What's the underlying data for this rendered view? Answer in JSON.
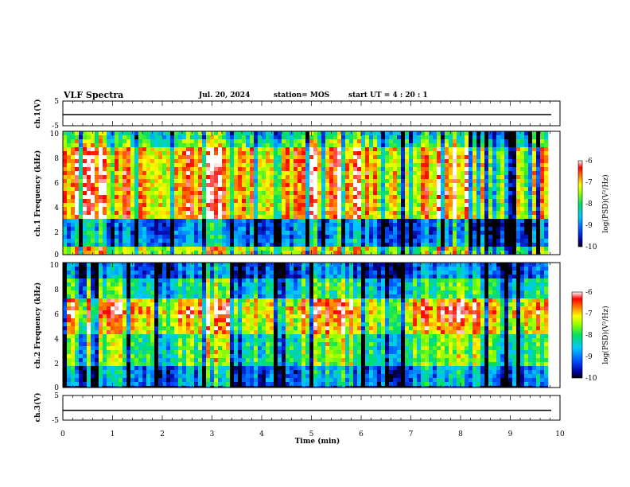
{
  "header": {
    "title": "VLF Spectra",
    "date": "Jul. 20, 2024",
    "station": "station= MOS",
    "start": "start UT =  4 : 20 : 1"
  },
  "chart_data": [
    {
      "type": "line",
      "panel": "ch1-waveform",
      "ylabel": "ch.1(V)",
      "ylim": [
        -5,
        5
      ],
      "yticks": [
        "5",
        "-5"
      ],
      "xlim": [
        0,
        10
      ],
      "series": [
        {
          "values": [
            -0.5
          ]
        }
      ]
    },
    {
      "type": "heatmap",
      "panel": "ch1-spectrogram",
      "ylabel": "ch.1 Frequency (kHz)",
      "xlim": [
        0,
        10
      ],
      "ylim": [
        0,
        10
      ],
      "yticks": [
        "0",
        "2",
        "4",
        "6",
        "8",
        "10"
      ],
      "colorbar": {
        "label": "log(PSD)(V²/Hz)",
        "ticks": [
          "-6",
          "-7",
          "-8",
          "-9",
          "-10"
        ],
        "range": [
          -10,
          -6
        ]
      }
    },
    {
      "type": "heatmap",
      "panel": "ch2-spectrogram",
      "ylabel": "ch.2 Frequency (kHz)",
      "xlim": [
        0,
        10
      ],
      "ylim": [
        0,
        10
      ],
      "yticks": [
        "0",
        "2",
        "4",
        "6",
        "8",
        "10"
      ],
      "colorbar": {
        "label": "log(PSD)(V²/Hz)",
        "ticks": [
          "-6",
          "-7",
          "-8",
          "-9",
          "-10"
        ],
        "range": [
          -10,
          -6
        ]
      }
    },
    {
      "type": "line",
      "panel": "ch3-waveform",
      "ylabel": "ch.3(V)",
      "ylim": [
        -5,
        5
      ],
      "yticks": [
        "5",
        "-5"
      ],
      "xlim": [
        0,
        10
      ],
      "xlabel": "Time (min)",
      "xticks": [
        "0",
        "1",
        "2",
        "3",
        "4",
        "5",
        "6",
        "7",
        "8",
        "9",
        "10"
      ],
      "series": [
        {
          "values": [
            -1.0
          ]
        }
      ]
    }
  ]
}
